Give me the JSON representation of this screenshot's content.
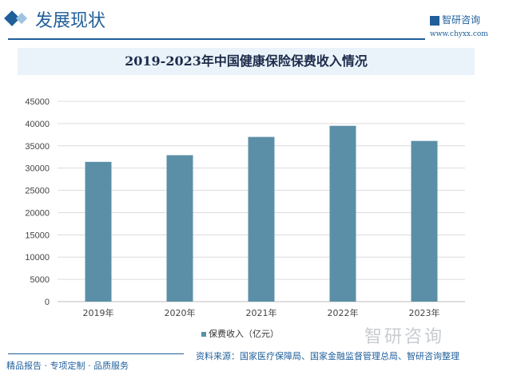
{
  "header": {
    "section_title": "发展现状",
    "logo_text": "智研咨询",
    "logo_url": "www.chyxx.com"
  },
  "chart_data": {
    "type": "bar",
    "title": "2019-2023年中国健康保险保费收入情况",
    "categories": [
      "2019年",
      "2020年",
      "2021年",
      "2022年",
      "2023年"
    ],
    "series": [
      {
        "name": "保费收入（亿元）",
        "values": [
          31400,
          32900,
          37000,
          39500,
          36100
        ],
        "color": "#5b8fa8"
      }
    ],
    "ylim": [
      0,
      45000
    ],
    "yticks": [
      0,
      5000,
      10000,
      15000,
      20000,
      25000,
      30000,
      35000,
      40000,
      45000
    ],
    "grid": true,
    "legend": "bottom"
  },
  "footer": {
    "watermark": "智研咨询",
    "source": "资料来源：国家医疗保障局、国家金融监督管理总局、智研咨询整理",
    "slogan": "精品报告 · 专项定制 · 品质服务"
  }
}
